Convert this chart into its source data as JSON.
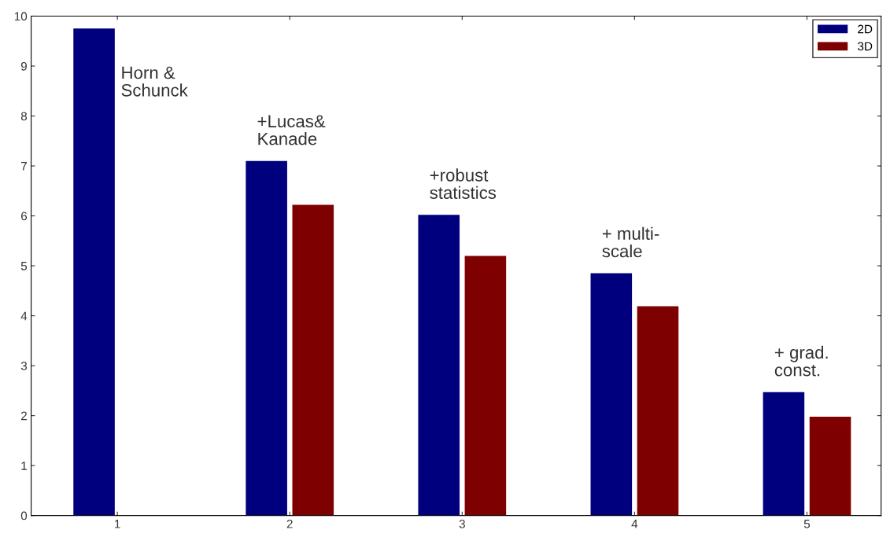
{
  "chart_data": {
    "type": "bar",
    "categories": [
      "1",
      "2",
      "3",
      "4",
      "5"
    ],
    "series": [
      {
        "name": "2D",
        "color": "#00007f",
        "values": [
          9.75,
          7.1,
          6.02,
          4.85,
          2.47
        ]
      },
      {
        "name": "3D",
        "color": "#7f0000",
        "values": [
          null,
          6.22,
          5.2,
          4.19,
          1.98
        ]
      }
    ],
    "ylim": [
      0,
      10
    ],
    "yticks": [
      0,
      1,
      2,
      3,
      4,
      5,
      6,
      7,
      8,
      9,
      10
    ],
    "grid": false,
    "legend": "top right",
    "annotations": [
      "Horn &\nSchunck",
      "+Lucas&\nKanade",
      "+robust\nstatistics",
      "+ multi-\nscale",
      "+ grad.\nconst."
    ]
  }
}
